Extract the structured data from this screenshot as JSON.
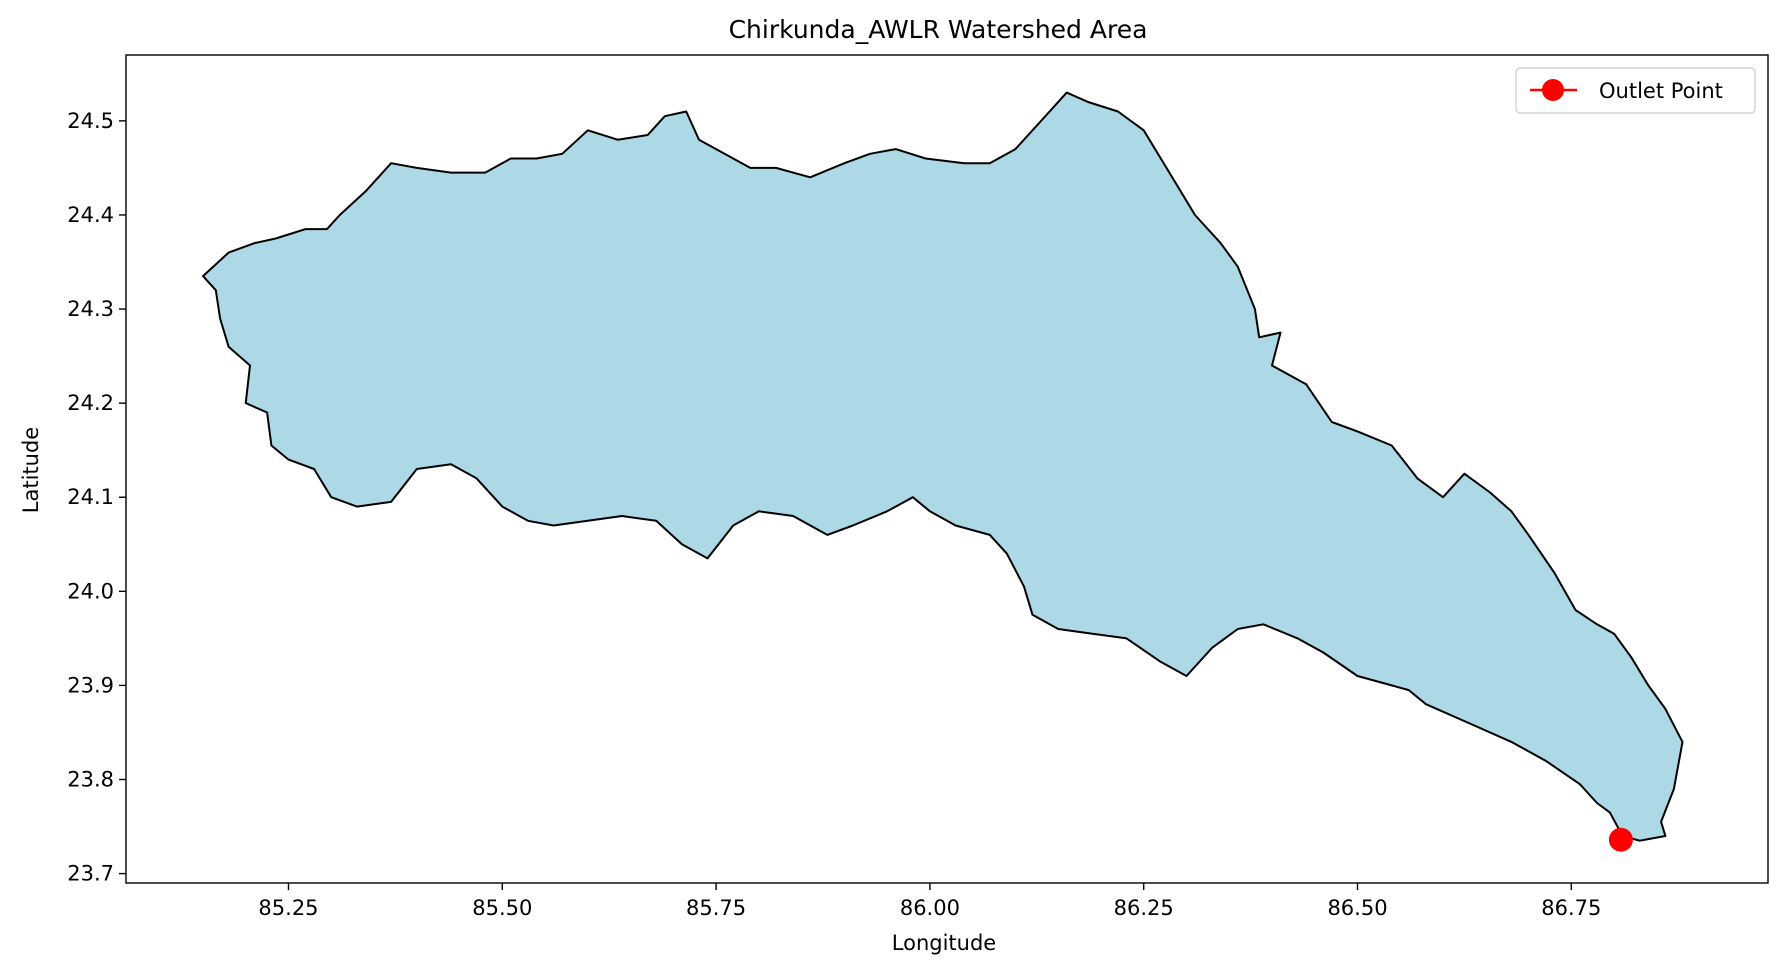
{
  "chart_data": {
    "type": "area",
    "title": "Chirkunda_AWLR Watershed Area",
    "xlabel": "Longitude",
    "ylabel": "Latitude",
    "xlim": [
      85.06,
      86.98
    ],
    "ylim": [
      23.69,
      24.57
    ],
    "x_ticks": [
      85.25,
      85.5,
      85.75,
      86.0,
      86.25,
      86.5,
      86.75
    ],
    "x_tick_labels": [
      "85.25",
      "85.50",
      "85.75",
      "86.00",
      "86.25",
      "86.50",
      "86.75"
    ],
    "y_ticks": [
      23.7,
      23.8,
      23.9,
      24.0,
      24.1,
      24.2,
      24.3,
      24.4,
      24.5
    ],
    "y_tick_labels": [
      "23.7",
      "23.8",
      "23.9",
      "24.0",
      "24.1",
      "24.2",
      "24.3",
      "24.4",
      "24.5"
    ],
    "grid": false,
    "legend_position": "top-right",
    "watershed": {
      "fill_color": "#add8e6",
      "edge_color": "#000000",
      "boundary": [
        [
          85.15,
          24.335
        ],
        [
          85.18,
          24.36
        ],
        [
          85.21,
          24.37
        ],
        [
          85.235,
          24.375
        ],
        [
          85.27,
          24.385
        ],
        [
          85.295,
          24.385
        ],
        [
          85.31,
          24.4
        ],
        [
          85.34,
          24.425
        ],
        [
          85.37,
          24.455
        ],
        [
          85.4,
          24.45
        ],
        [
          85.44,
          24.445
        ],
        [
          85.48,
          24.445
        ],
        [
          85.51,
          24.46
        ],
        [
          85.54,
          24.46
        ],
        [
          85.57,
          24.465
        ],
        [
          85.6,
          24.49
        ],
        [
          85.635,
          24.48
        ],
        [
          85.67,
          24.485
        ],
        [
          85.69,
          24.505
        ],
        [
          85.715,
          24.51
        ],
        [
          85.73,
          24.48
        ],
        [
          85.77,
          24.46
        ],
        [
          85.79,
          24.45
        ],
        [
          85.82,
          24.45
        ],
        [
          85.86,
          24.44
        ],
        [
          85.9,
          24.455
        ],
        [
          85.93,
          24.465
        ],
        [
          85.96,
          24.47
        ],
        [
          85.995,
          24.46
        ],
        [
          86.04,
          24.455
        ],
        [
          86.07,
          24.455
        ],
        [
          86.1,
          24.47
        ],
        [
          86.14,
          24.51
        ],
        [
          86.16,
          24.53
        ],
        [
          86.185,
          24.52
        ],
        [
          86.22,
          24.51
        ],
        [
          86.25,
          24.49
        ],
        [
          86.27,
          24.46
        ],
        [
          86.29,
          24.43
        ],
        [
          86.31,
          24.4
        ],
        [
          86.34,
          24.37
        ],
        [
          86.36,
          24.345
        ],
        [
          86.38,
          24.3
        ],
        [
          86.385,
          24.27
        ],
        [
          86.41,
          24.275
        ],
        [
          86.4,
          24.24
        ],
        [
          86.44,
          24.22
        ],
        [
          86.47,
          24.18
        ],
        [
          86.5,
          24.17
        ],
        [
          86.54,
          24.155
        ],
        [
          86.57,
          24.12
        ],
        [
          86.6,
          24.1
        ],
        [
          86.625,
          24.125
        ],
        [
          86.655,
          24.105
        ],
        [
          86.68,
          24.085
        ],
        [
          86.7,
          24.06
        ],
        [
          86.73,
          24.02
        ],
        [
          86.755,
          23.98
        ],
        [
          86.78,
          23.965
        ],
        [
          86.8,
          23.955
        ],
        [
          86.82,
          23.93
        ],
        [
          86.84,
          23.9
        ],
        [
          86.86,
          23.875
        ],
        [
          86.88,
          23.84
        ],
        [
          86.87,
          23.79
        ],
        [
          86.855,
          23.755
        ],
        [
          86.86,
          23.74
        ],
        [
          86.83,
          23.735
        ],
        [
          86.81,
          23.74
        ],
        [
          86.795,
          23.765
        ],
        [
          86.78,
          23.775
        ],
        [
          86.76,
          23.795
        ],
        [
          86.72,
          23.82
        ],
        [
          86.68,
          23.84
        ],
        [
          86.63,
          23.86
        ],
        [
          86.58,
          23.88
        ],
        [
          86.56,
          23.895
        ],
        [
          86.54,
          23.9
        ],
        [
          86.5,
          23.91
        ],
        [
          86.46,
          23.935
        ],
        [
          86.43,
          23.95
        ],
        [
          86.39,
          23.965
        ],
        [
          86.36,
          23.96
        ],
        [
          86.33,
          23.94
        ],
        [
          86.3,
          23.91
        ],
        [
          86.27,
          23.925
        ],
        [
          86.23,
          23.95
        ],
        [
          86.19,
          23.955
        ],
        [
          86.15,
          23.96
        ],
        [
          86.12,
          23.975
        ],
        [
          86.11,
          24.005
        ],
        [
          86.09,
          24.04
        ],
        [
          86.07,
          24.06
        ],
        [
          86.03,
          24.07
        ],
        [
          86.0,
          24.085
        ],
        [
          85.98,
          24.1
        ],
        [
          85.95,
          24.085
        ],
        [
          85.91,
          24.07
        ],
        [
          85.88,
          24.06
        ],
        [
          85.84,
          24.08
        ],
        [
          85.8,
          24.085
        ],
        [
          85.77,
          24.07
        ],
        [
          85.74,
          24.035
        ],
        [
          85.71,
          24.05
        ],
        [
          85.68,
          24.075
        ],
        [
          85.64,
          24.08
        ],
        [
          85.6,
          24.075
        ],
        [
          85.56,
          24.07
        ],
        [
          85.53,
          24.075
        ],
        [
          85.5,
          24.09
        ],
        [
          85.47,
          24.12
        ],
        [
          85.44,
          24.135
        ],
        [
          85.4,
          24.13
        ],
        [
          85.37,
          24.095
        ],
        [
          85.33,
          24.09
        ],
        [
          85.3,
          24.1
        ],
        [
          85.28,
          24.13
        ],
        [
          85.25,
          24.14
        ],
        [
          85.23,
          24.155
        ],
        [
          85.225,
          24.19
        ],
        [
          85.2,
          24.2
        ],
        [
          85.205,
          24.24
        ],
        [
          85.18,
          24.26
        ],
        [
          85.17,
          24.29
        ],
        [
          85.165,
          24.32
        ]
      ]
    },
    "series": [
      {
        "name": "Outlet Point",
        "color": "#ff0000",
        "marker": "circle",
        "x": [
          86.808
        ],
        "y": [
          23.736
        ]
      }
    ]
  }
}
